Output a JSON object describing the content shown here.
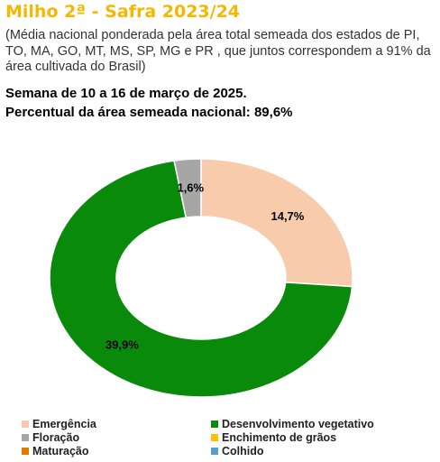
{
  "header": {
    "title": "Milho 2ª - Safra 2023/24",
    "subtitle": "(Média nacional ponderada pela área total semeada dos estados de PI, TO, MA, GO, MT, MS, SP, MG e PR , que juntos correspondem a 91% da área cultivada do Brasil)",
    "week": "Semana de 10 a 16 de março de 2025.",
    "percent_sown": "Percentual da área semeada nacional: 89,6%"
  },
  "chart_data": {
    "type": "pie",
    "donut": true,
    "slices": [
      {
        "name": "Emergência",
        "value": 14.7,
        "label": "14,7%",
        "color": "#F8CBAD"
      },
      {
        "name": "Desenvolvimento vegetativo",
        "value": 39.9,
        "label": "39,9%",
        "color": "#0A8A0A"
      },
      {
        "name": "Floração",
        "value": 1.6,
        "label": "1,6%",
        "color": "#A6A6A6"
      }
    ],
    "legend": [
      {
        "name": "Emergência",
        "color": "#F8CBAD"
      },
      {
        "name": "Desenvolvimento vegetativo",
        "color": "#0A8A0A"
      },
      {
        "name": "Floração",
        "color": "#A6A6A6"
      },
      {
        "name": "Enchimento de grãos",
        "color": "#FFC000"
      },
      {
        "name": "Maturação",
        "color": "#E07B00"
      },
      {
        "name": "Colhido",
        "color": "#5B9BD5"
      }
    ],
    "legend_position": "bottom"
  }
}
